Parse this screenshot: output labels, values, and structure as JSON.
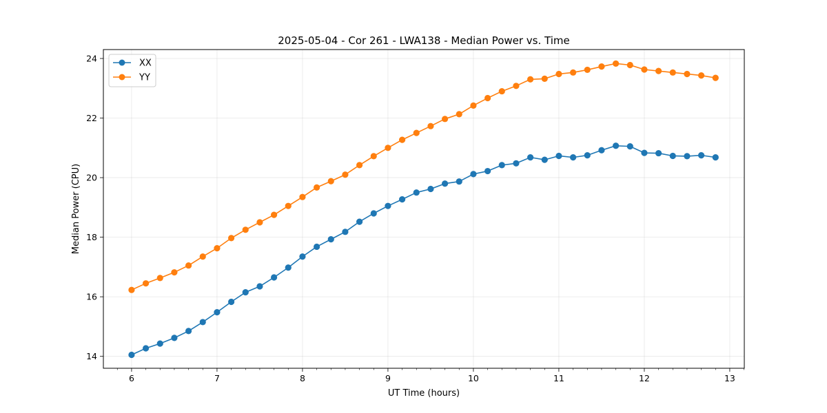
{
  "chart_data": {
    "type": "line",
    "title": "2025-05-04 - Cor 261 - LWA138 - Median Power vs. Time",
    "xlabel": "UT Time (hours)",
    "ylabel": "Median Power (CPU)",
    "xlim": [
      5.67,
      13.17
    ],
    "ylim": [
      13.6,
      24.3
    ],
    "xticks": [
      6,
      7,
      8,
      9,
      10,
      11,
      12,
      13
    ],
    "yticks": [
      14,
      16,
      18,
      20,
      22,
      24
    ],
    "grid": true,
    "legend_position": "top-left",
    "x": [
      6.0,
      6.1667,
      6.3333,
      6.5,
      6.6667,
      6.8333,
      7.0,
      7.1667,
      7.3333,
      7.5,
      7.6667,
      7.8333,
      8.0,
      8.1667,
      8.3333,
      8.5,
      8.6667,
      8.8333,
      9.0,
      9.1667,
      9.3333,
      9.5,
      9.6667,
      9.8333,
      10.0,
      10.1667,
      10.3333,
      10.5,
      10.6667,
      10.8333,
      11.0,
      11.1667,
      11.3333,
      11.5,
      11.6667,
      11.8333,
      12.0,
      12.1667,
      12.3333,
      12.5,
      12.6667,
      12.8333
    ],
    "series": [
      {
        "name": "XX",
        "color": "#1f77b4",
        "values": [
          14.05,
          14.27,
          14.43,
          14.62,
          14.85,
          15.15,
          15.48,
          15.83,
          16.15,
          16.35,
          16.65,
          16.98,
          17.35,
          17.68,
          17.93,
          18.18,
          18.52,
          18.8,
          19.05,
          19.27,
          19.5,
          19.62,
          19.8,
          19.87,
          20.12,
          20.22,
          20.42,
          20.48,
          20.68,
          20.6,
          20.73,
          20.68,
          20.75,
          20.92,
          21.07,
          21.05,
          20.83,
          20.82,
          20.73,
          20.72,
          20.75,
          20.68
        ]
      },
      {
        "name": "YY",
        "color": "#ff7f0e",
        "values": [
          16.23,
          16.45,
          16.63,
          16.82,
          17.05,
          17.35,
          17.63,
          17.97,
          18.25,
          18.5,
          18.75,
          19.05,
          19.35,
          19.67,
          19.88,
          20.1,
          20.42,
          20.72,
          21.0,
          21.27,
          21.5,
          21.73,
          21.97,
          22.13,
          22.42,
          22.67,
          22.9,
          23.08,
          23.3,
          23.32,
          23.48,
          23.53,
          23.62,
          23.73,
          23.83,
          23.78,
          23.63,
          23.58,
          23.53,
          23.48,
          23.43,
          23.35
        ]
      }
    ]
  }
}
